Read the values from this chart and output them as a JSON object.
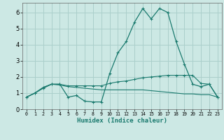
{
  "title": "",
  "xlabel": "Humidex (Indice chaleur)",
  "bg_color": "#cce8e4",
  "grid_color": "#aacfcb",
  "line_color": "#1a7a6e",
  "xlim": [
    -0.5,
    23.5
  ],
  "ylim": [
    0,
    6.6
  ],
  "xticks": [
    0,
    1,
    2,
    3,
    4,
    5,
    6,
    7,
    8,
    9,
    10,
    11,
    12,
    13,
    14,
    15,
    16,
    17,
    18,
    19,
    20,
    21,
    22,
    23
  ],
  "yticks": [
    0,
    1,
    2,
    3,
    4,
    5,
    6
  ],
  "series1_x": [
    0,
    1,
    2,
    3,
    4,
    5,
    6,
    7,
    8,
    9,
    10,
    11,
    12,
    13,
    14,
    15,
    16,
    17,
    18,
    19,
    20,
    21,
    22,
    23
  ],
  "series1_y": [
    0.75,
    1.0,
    1.3,
    1.55,
    1.55,
    0.75,
    0.85,
    0.5,
    0.45,
    0.45,
    2.2,
    3.5,
    4.2,
    5.4,
    6.25,
    5.6,
    6.25,
    6.0,
    4.2,
    2.8,
    1.55,
    1.4,
    1.55,
    0.75
  ],
  "series2_x": [
    0,
    1,
    2,
    3,
    4,
    5,
    6,
    7,
    8,
    9,
    10,
    11,
    12,
    13,
    14,
    15,
    16,
    17,
    18,
    19,
    20,
    21,
    22,
    23
  ],
  "series2_y": [
    0.75,
    1.0,
    1.35,
    1.55,
    1.55,
    1.45,
    1.45,
    1.45,
    1.45,
    1.45,
    1.6,
    1.7,
    1.75,
    1.85,
    1.95,
    2.0,
    2.05,
    2.1,
    2.1,
    2.1,
    2.1,
    1.6,
    1.55,
    0.75
  ],
  "series3_x": [
    0,
    1,
    2,
    3,
    4,
    5,
    6,
    7,
    8,
    9,
    10,
    11,
    12,
    13,
    14,
    15,
    16,
    17,
    18,
    19,
    20,
    21,
    22,
    23
  ],
  "series3_y": [
    0.75,
    1.0,
    1.35,
    1.55,
    1.5,
    1.4,
    1.35,
    1.3,
    1.25,
    1.2,
    1.2,
    1.2,
    1.2,
    1.2,
    1.2,
    1.15,
    1.1,
    1.05,
    1.0,
    0.95,
    0.95,
    0.9,
    0.9,
    0.75
  ]
}
